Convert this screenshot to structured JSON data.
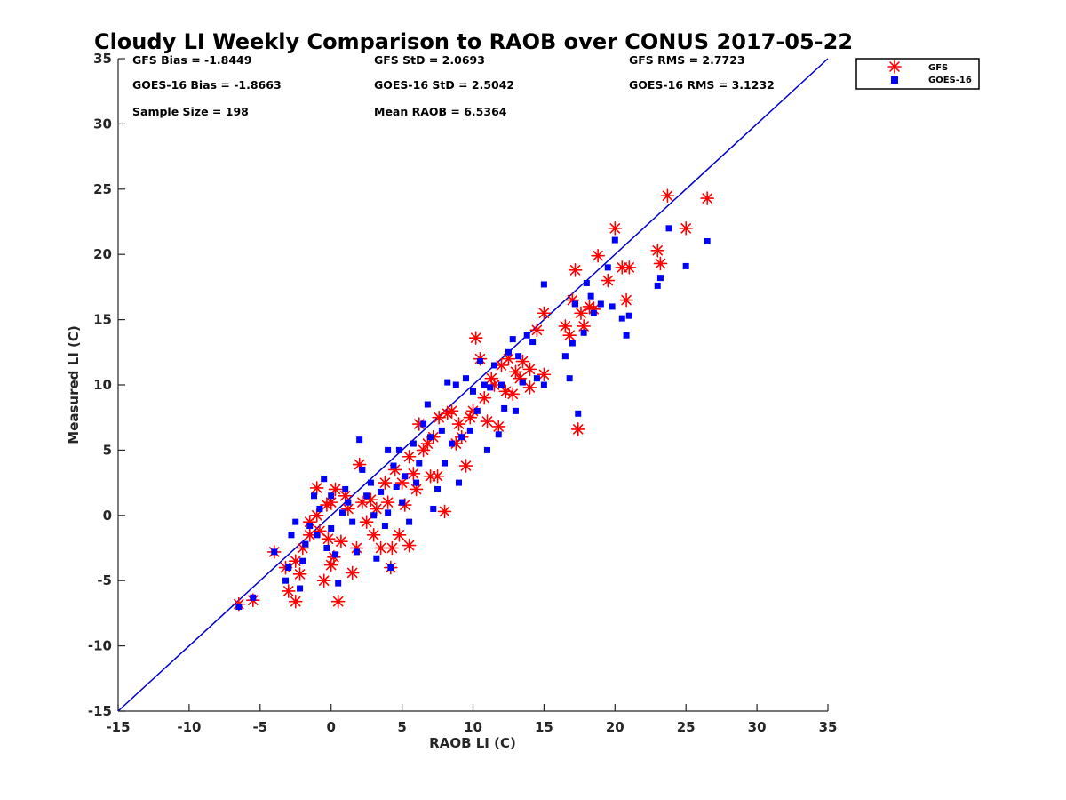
{
  "chart_data": {
    "type": "scatter",
    "title": "Cloudy LI Weekly Comparison to RAOB over CONUS 2017-05-22",
    "xlabel": "RAOB LI (C)",
    "ylabel": "Measured LI (C)",
    "xlim": [
      -15,
      35
    ],
    "ylim": [
      -15,
      35
    ],
    "xticks": [
      "-15",
      "-10",
      "-5",
      "0",
      "5",
      "10",
      "15",
      "20",
      "25",
      "30",
      "35"
    ],
    "yticks": [
      "-15",
      "-10",
      "-5",
      "0",
      "5",
      "10",
      "15",
      "20",
      "25",
      "30",
      "35"
    ],
    "grid": false,
    "legend_position": "outside top-right",
    "reference_line": {
      "from": [
        -15,
        -15
      ],
      "to": [
        35,
        35
      ],
      "color": "#0000cc"
    },
    "stats": [
      [
        "GFS Bias = -1.8449",
        "GFS StD = 2.0693",
        "GFS RMS = 2.7723"
      ],
      [
        "GOES-16 Bias = -1.8663",
        "GOES-16 StD = 2.5042",
        "GOES-16 RMS = 3.1232"
      ],
      [
        "Sample Size = 198",
        "Mean RAOB = 6.5364",
        ""
      ]
    ],
    "series": [
      {
        "name": "GFS",
        "marker": "asterisk",
        "color": "#ff0000",
        "points": [
          [
            -6.5,
            -6.8
          ],
          [
            -5.5,
            -6.5
          ],
          [
            -4,
            -2.8
          ],
          [
            -3.2,
            -4
          ],
          [
            -3,
            -5.8
          ],
          [
            -2.5,
            -6.6
          ],
          [
            -2.2,
            -4.5
          ],
          [
            -2.5,
            -3.5
          ],
          [
            -2,
            -2.5
          ],
          [
            -1.5,
            -1.5
          ],
          [
            -1.5,
            -0.5
          ],
          [
            -1,
            0
          ],
          [
            -1,
            2.1
          ],
          [
            -0.8,
            -1.2
          ],
          [
            -0.5,
            -5
          ],
          [
            -0.3,
            0.8
          ],
          [
            -0.2,
            -1.8
          ],
          [
            0,
            -3.8
          ],
          [
            0,
            1
          ],
          [
            0.2,
            -3.2
          ],
          [
            0.3,
            2
          ],
          [
            0.5,
            -6.6
          ],
          [
            0.7,
            -2
          ],
          [
            1,
            1.5
          ],
          [
            1.2,
            0.5
          ],
          [
            1.5,
            -4.4
          ],
          [
            1.8,
            -2.5
          ],
          [
            2,
            3.9
          ],
          [
            2.2,
            1
          ],
          [
            2.5,
            -0.5
          ],
          [
            2.8,
            1.2
          ],
          [
            3,
            -1.5
          ],
          [
            3.2,
            0.5
          ],
          [
            3.5,
            -2.5
          ],
          [
            3.8,
            2.5
          ],
          [
            4,
            1
          ],
          [
            4.2,
            -4
          ],
          [
            4.3,
            -2.5
          ],
          [
            4.5,
            3.5
          ],
          [
            4.8,
            -1.5
          ],
          [
            5,
            2.5
          ],
          [
            5.2,
            0.8
          ],
          [
            5.5,
            -2.3
          ],
          [
            5.5,
            4.5
          ],
          [
            5.8,
            3.2
          ],
          [
            6,
            2
          ],
          [
            6.2,
            7
          ],
          [
            6.5,
            5
          ],
          [
            6.8,
            5.5
          ],
          [
            7,
            3
          ],
          [
            7.2,
            6
          ],
          [
            7.5,
            3
          ],
          [
            7.6,
            7.5
          ],
          [
            8,
            0.3
          ],
          [
            8.2,
            7.8
          ],
          [
            8.5,
            8
          ],
          [
            8.8,
            5.5
          ],
          [
            9,
            7
          ],
          [
            9.2,
            6
          ],
          [
            9.5,
            3.8
          ],
          [
            9.8,
            7.5
          ],
          [
            10,
            8
          ],
          [
            10.2,
            13.6
          ],
          [
            10.5,
            12
          ],
          [
            10.8,
            9
          ],
          [
            11,
            7.2
          ],
          [
            11.3,
            10.5
          ],
          [
            11.5,
            10
          ],
          [
            11.8,
            6.8
          ],
          [
            12,
            11.5
          ],
          [
            12.3,
            9.5
          ],
          [
            12.5,
            12
          ],
          [
            12.8,
            9.3
          ],
          [
            13,
            11
          ],
          [
            13.3,
            10.5
          ],
          [
            13.5,
            11.8
          ],
          [
            14,
            11.2
          ],
          [
            14,
            9.8
          ],
          [
            14.5,
            14.2
          ],
          [
            15,
            15.5
          ],
          [
            15,
            10.8
          ],
          [
            16.5,
            14.5
          ],
          [
            16.8,
            13.8
          ],
          [
            17,
            16.5
          ],
          [
            17.2,
            18.8
          ],
          [
            17.4,
            6.6
          ],
          [
            17.6,
            15.5
          ],
          [
            17.8,
            14.5
          ],
          [
            18.2,
            16
          ],
          [
            18.5,
            15.8
          ],
          [
            18.8,
            19.9
          ],
          [
            19.5,
            18
          ],
          [
            20,
            22
          ],
          [
            20.5,
            19
          ],
          [
            20.8,
            16.5
          ],
          [
            21,
            19
          ],
          [
            23,
            20.3
          ],
          [
            23.2,
            19.3
          ],
          [
            23.7,
            24.5
          ],
          [
            25,
            22
          ],
          [
            26.5,
            24.3
          ]
        ]
      },
      {
        "name": "GOES-16",
        "marker": "square",
        "color": "#0000ff",
        "points": [
          [
            -6.5,
            -7
          ],
          [
            -5.5,
            -6.3
          ],
          [
            -4,
            -2.8
          ],
          [
            -3.2,
            -5
          ],
          [
            -3,
            -4
          ],
          [
            -2.8,
            -1.5
          ],
          [
            -2.5,
            -0.5
          ],
          [
            -2.2,
            -5.6
          ],
          [
            -2,
            -3.5
          ],
          [
            -1.8,
            -2.2
          ],
          [
            -1.5,
            -0.8
          ],
          [
            -1.2,
            1.5
          ],
          [
            -1,
            -1.5
          ],
          [
            -0.8,
            0.5
          ],
          [
            -0.5,
            2.8
          ],
          [
            -0.3,
            -2.5
          ],
          [
            0,
            1.5
          ],
          [
            0,
            -1
          ],
          [
            0.3,
            -3
          ],
          [
            0.5,
            -5.2
          ],
          [
            0.8,
            0.2
          ],
          [
            1,
            2
          ],
          [
            1.2,
            1
          ],
          [
            1.5,
            -0.5
          ],
          [
            1.8,
            -2.8
          ],
          [
            2,
            5.8
          ],
          [
            2.2,
            3.5
          ],
          [
            2.5,
            1.5
          ],
          [
            2.8,
            2.5
          ],
          [
            3,
            0
          ],
          [
            3.2,
            -3.3
          ],
          [
            3.5,
            1.8
          ],
          [
            3.8,
            -0.8
          ],
          [
            4,
            5
          ],
          [
            4,
            0.2
          ],
          [
            4.2,
            -4
          ],
          [
            4.4,
            3.8
          ],
          [
            4.6,
            2.2
          ],
          [
            4.8,
            5
          ],
          [
            5,
            1
          ],
          [
            5.2,
            3
          ],
          [
            5.5,
            -0.5
          ],
          [
            5.8,
            5.5
          ],
          [
            6,
            2.5
          ],
          [
            6.2,
            4
          ],
          [
            6.5,
            7
          ],
          [
            6.8,
            8.5
          ],
          [
            7,
            6
          ],
          [
            7.2,
            0.5
          ],
          [
            7.5,
            2
          ],
          [
            7.8,
            6.5
          ],
          [
            8,
            4
          ],
          [
            8.2,
            10.2
          ],
          [
            8.5,
            5.5
          ],
          [
            8.8,
            10
          ],
          [
            9,
            2.5
          ],
          [
            9.2,
            6
          ],
          [
            9.5,
            10.5
          ],
          [
            9.8,
            6.5
          ],
          [
            10,
            9.5
          ],
          [
            10.3,
            8
          ],
          [
            10.5,
            11.8
          ],
          [
            10.8,
            10
          ],
          [
            11,
            5
          ],
          [
            11.2,
            9.8
          ],
          [
            11.5,
            11.5
          ],
          [
            11.8,
            6.2
          ],
          [
            12,
            10
          ],
          [
            12.2,
            8.2
          ],
          [
            12.5,
            12.5
          ],
          [
            12.8,
            13.5
          ],
          [
            13,
            8
          ],
          [
            13.2,
            12.2
          ],
          [
            13.5,
            10.2
          ],
          [
            13.8,
            13.8
          ],
          [
            14.2,
            13.3
          ],
          [
            14.5,
            10.5
          ],
          [
            15,
            17.7
          ],
          [
            15,
            10
          ],
          [
            16.5,
            12.2
          ],
          [
            16.8,
            10.5
          ],
          [
            17,
            13.2
          ],
          [
            17.2,
            16.2
          ],
          [
            17.4,
            7.8
          ],
          [
            17.8,
            14
          ],
          [
            18,
            17.8
          ],
          [
            18.3,
            16.8
          ],
          [
            18.5,
            15.5
          ],
          [
            19,
            16.2
          ],
          [
            19.5,
            19
          ],
          [
            19.8,
            16
          ],
          [
            20,
            21.1
          ],
          [
            20.5,
            15.1
          ],
          [
            20.8,
            13.8
          ],
          [
            21,
            15.3
          ],
          [
            23,
            17.6
          ],
          [
            23.2,
            18.2
          ],
          [
            23.8,
            22
          ],
          [
            25,
            19.1
          ],
          [
            26.5,
            21
          ]
        ]
      }
    ]
  }
}
